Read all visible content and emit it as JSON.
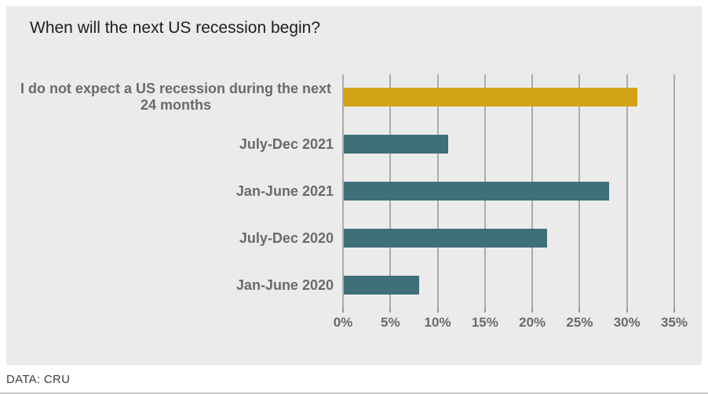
{
  "chart_data": {
    "type": "bar",
    "orientation": "horizontal",
    "title": "When will the next US recession begin?",
    "categories": [
      "I do not expect a US recession during the next 24 months",
      "July-Dec 2021",
      "Jan-June 2021",
      "July-Dec 2020",
      "Jan-June 2020"
    ],
    "values": [
      31,
      11,
      28,
      21.5,
      8
    ],
    "unit": "%",
    "bar_colors": [
      "#d2a317",
      "#3e7079",
      "#3e7079",
      "#3e7079",
      "#3e7079"
    ],
    "highlight_color": "#d2a317",
    "base_color": "#3e7079",
    "background_color": "#ebebeb",
    "xlabel": "",
    "ylabel": "",
    "xlim": [
      0,
      35
    ],
    "x_ticks": [
      0,
      5,
      10,
      15,
      20,
      25,
      30,
      35
    ],
    "x_tick_labels": [
      "0%",
      "5%",
      "10%",
      "15%",
      "20%",
      "25%",
      "30%",
      "35%"
    ],
    "grid": "vertical-only",
    "legend": "none"
  },
  "source": {
    "label": "DATA: CRU"
  }
}
